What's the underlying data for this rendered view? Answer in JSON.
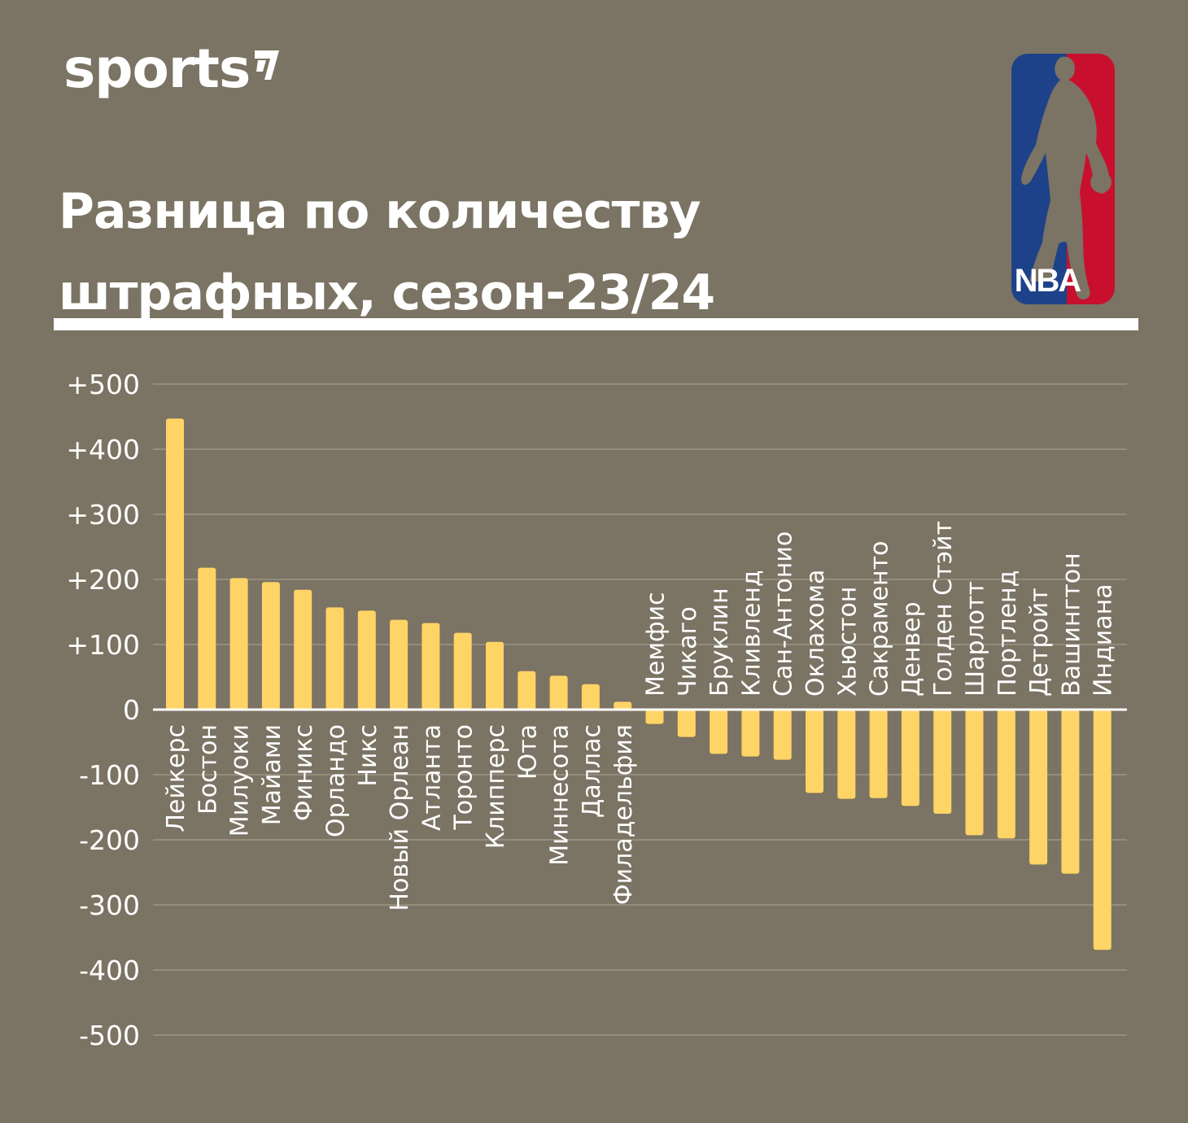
{
  "brand": {
    "name": "sports"
  },
  "logo": {
    "text": "NBA",
    "colors": {
      "blue": "#1d428a",
      "red": "#c8102e"
    }
  },
  "header": {
    "title_line1": "Разница по количеству",
    "title_line2": "штрафных, сезон-23/24"
  },
  "colors": {
    "background": "#7b7363",
    "bar": "#ffd466",
    "grid": "#948c7c",
    "text": "#ffffff"
  },
  "chart_data": {
    "type": "bar",
    "title": "Разница по количеству штрафных, сезон-23/24",
    "xlabel": "",
    "ylabel": "",
    "ylim": [
      -500,
      500
    ],
    "yticks": [
      500,
      400,
      300,
      200,
      100,
      0,
      -100,
      -200,
      -300,
      -400,
      -500
    ],
    "ytick_labels": [
      "+500",
      "+400",
      "+300",
      "+200",
      "+100",
      "0",
      "-100",
      "-200",
      "-300",
      "-400",
      "-500"
    ],
    "grid": true,
    "categories": [
      "Лейкерс",
      "Бостон",
      "Милуоки",
      "Майами",
      "Финикс",
      "Орландо",
      "Никс",
      "Новый Орлеан",
      "Атланта",
      "Торонто",
      "Клипперс",
      "Юта",
      "Миннесота",
      "Даллас",
      "Филадельфия",
      "Мемфис",
      "Чикаго",
      "Бруклин",
      "Кливленд",
      "Сан-Антонио",
      "Оклахома",
      "Хьюстон",
      "Сакраменто",
      "Денвер",
      "Голден Стэйт",
      "Шарлотт",
      "Портленд",
      "Детройт",
      "Вашингтон",
      "Индиана"
    ],
    "values": [
      447,
      218,
      202,
      196,
      184,
      157,
      152,
      138,
      133,
      118,
      104,
      59,
      52,
      39,
      12,
      -22,
      -42,
      -68,
      -72,
      -77,
      -128,
      -137,
      -136,
      -148,
      -160,
      -193,
      -198,
      -238,
      -252,
      -369
    ]
  }
}
